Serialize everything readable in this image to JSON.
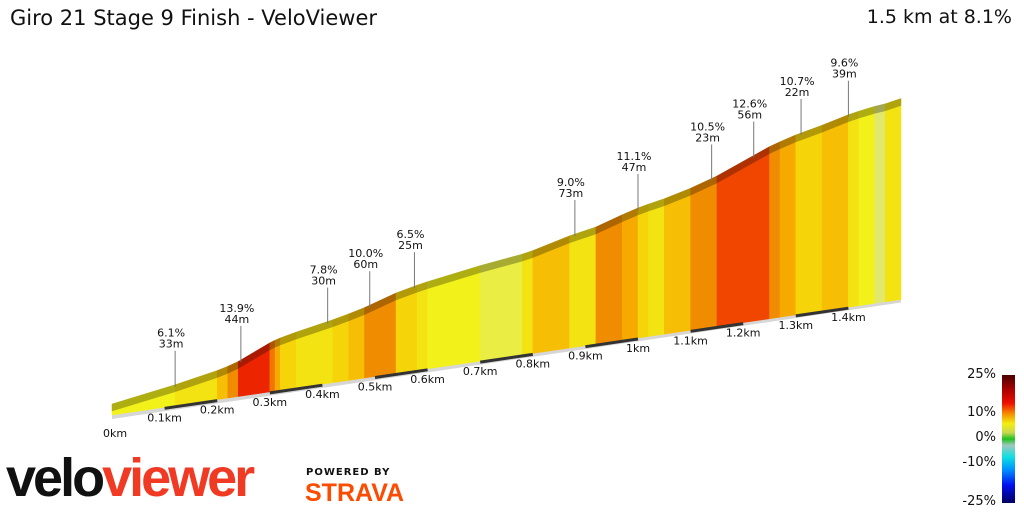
{
  "title": "Giro 21 Stage 9 Finish - VeloViewer",
  "summary": "1.5 km at 8.1%",
  "logo": {
    "part1": "velo",
    "part2": "viewer"
  },
  "powered_by": "POWERED BY",
  "strava": "STRAVA",
  "color_scale": {
    "labels": [
      "25%",
      "10%",
      "0%",
      "-10%",
      "-25%"
    ]
  },
  "chart_data": {
    "type": "area",
    "title": "",
    "xlabel": "",
    "ylabel": "",
    "xlim_km": [
      0,
      1.5
    ],
    "x_tick_labels": [
      "0km",
      "0.1km",
      "0.2km",
      "0.3km",
      "0.4km",
      "0.5km",
      "0.6km",
      "0.7km",
      "0.8km",
      "0.9km",
      "1km",
      "1.1km",
      "1.2km",
      "1.3km",
      "1.4km"
    ],
    "segments": [
      {
        "from": 0,
        "to": 0.12,
        "gradient": 5
      },
      {
        "from": 0.12,
        "to": 0.2,
        "gradient": 6
      },
      {
        "from": 0.2,
        "to": 0.22,
        "gradient": 8
      },
      {
        "from": 0.22,
        "to": 0.24,
        "gradient": 10
      },
      {
        "from": 0.24,
        "to": 0.3,
        "gradient": 14
      },
      {
        "from": 0.3,
        "to": 0.31,
        "gradient": 11
      },
      {
        "from": 0.31,
        "to": 0.32,
        "gradient": 9
      },
      {
        "from": 0.32,
        "to": 0.35,
        "gradient": 7
      },
      {
        "from": 0.35,
        "to": 0.42,
        "gradient": 6
      },
      {
        "from": 0.42,
        "to": 0.45,
        "gradient": 7
      },
      {
        "from": 0.45,
        "to": 0.48,
        "gradient": 8
      },
      {
        "from": 0.48,
        "to": 0.54,
        "gradient": 10
      },
      {
        "from": 0.54,
        "to": 0.58,
        "gradient": 7
      },
      {
        "from": 0.58,
        "to": 0.6,
        "gradient": 6
      },
      {
        "from": 0.6,
        "to": 0.7,
        "gradient": 5
      },
      {
        "from": 0.7,
        "to": 0.78,
        "gradient": 4
      },
      {
        "from": 0.78,
        "to": 0.8,
        "gradient": 6
      },
      {
        "from": 0.8,
        "to": 0.87,
        "gradient": 8
      },
      {
        "from": 0.87,
        "to": 0.92,
        "gradient": 6
      },
      {
        "from": 0.92,
        "to": 0.97,
        "gradient": 10
      },
      {
        "from": 0.97,
        "to": 1.0,
        "gradient": 9
      },
      {
        "from": 1.0,
        "to": 1.02,
        "gradient": 7
      },
      {
        "from": 1.02,
        "to": 1.05,
        "gradient": 6
      },
      {
        "from": 1.05,
        "to": 1.1,
        "gradient": 8
      },
      {
        "from": 1.1,
        "to": 1.15,
        "gradient": 10
      },
      {
        "from": 1.15,
        "to": 1.25,
        "gradient": 13
      },
      {
        "from": 1.25,
        "to": 1.27,
        "gradient": 10
      },
      {
        "from": 1.27,
        "to": 1.3,
        "gradient": 9
      },
      {
        "from": 1.3,
        "to": 1.35,
        "gradient": 7
      },
      {
        "from": 1.35,
        "to": 1.4,
        "gradient": 8
      },
      {
        "from": 1.4,
        "to": 1.42,
        "gradient": 6
      },
      {
        "from": 1.42,
        "to": 1.45,
        "gradient": 5
      },
      {
        "from": 1.45,
        "to": 1.47,
        "gradient": 3
      },
      {
        "from": 1.47,
        "to": 1.5,
        "gradient": 6
      }
    ],
    "annotations": [
      {
        "km": 0.12,
        "gradient": "6.1%",
        "length": "33m"
      },
      {
        "km": 0.245,
        "gradient": "13.9%",
        "length": "44m"
      },
      {
        "km": 0.41,
        "gradient": "7.8%",
        "length": "30m"
      },
      {
        "km": 0.49,
        "gradient": "10.0%",
        "length": "60m"
      },
      {
        "km": 0.575,
        "gradient": "6.5%",
        "length": "25m"
      },
      {
        "km": 0.88,
        "gradient": "9.0%",
        "length": "73m"
      },
      {
        "km": 1.0,
        "gradient": "11.1%",
        "length": "47m"
      },
      {
        "km": 1.14,
        "gradient": "10.5%",
        "length": "23m"
      },
      {
        "km": 1.22,
        "gradient": "12.6%",
        "length": "56m"
      },
      {
        "km": 1.31,
        "gradient": "10.7%",
        "length": "22m"
      },
      {
        "km": 1.4,
        "gradient": "9.6%",
        "length": "39m"
      }
    ]
  }
}
